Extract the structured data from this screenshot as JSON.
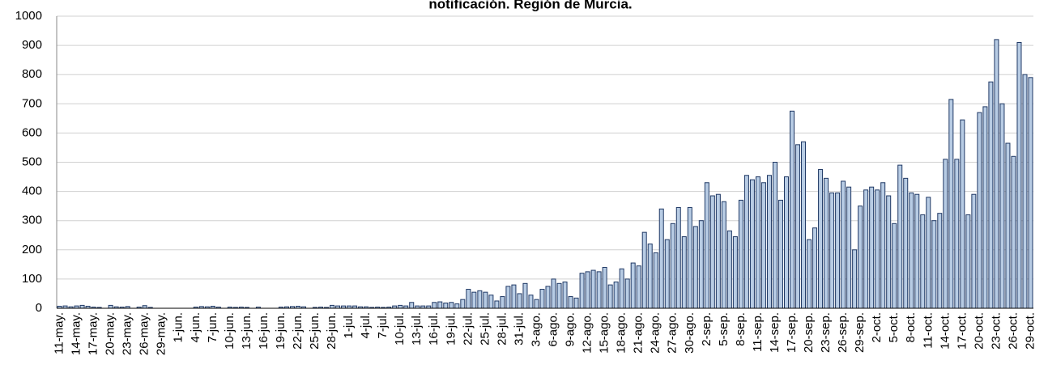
{
  "chart_data": {
    "type": "bar",
    "title": "notificación. Región de Murcia.",
    "categories": [
      "11-may.",
      null,
      null,
      "14-may.",
      null,
      null,
      "17-may.",
      null,
      null,
      "20-may.",
      null,
      null,
      "23-may.",
      null,
      null,
      "26-may.",
      null,
      null,
      "29-may.",
      null,
      null,
      "1-jun.",
      null,
      null,
      "4-jun.",
      null,
      null,
      "7-jun.",
      null,
      null,
      "10-jun.",
      null,
      null,
      "13-jun.",
      null,
      null,
      "16-jun.",
      null,
      null,
      "19-jun.",
      null,
      null,
      "22-jun.",
      null,
      null,
      "25-jun.",
      null,
      null,
      "28-jun.",
      null,
      null,
      "1-jul.",
      null,
      null,
      "4-jul.",
      null,
      null,
      "7-jul.",
      null,
      null,
      "10-jul.",
      null,
      null,
      "13-jul.",
      null,
      null,
      "16-jul.",
      null,
      null,
      "19-jul.",
      null,
      null,
      "22-jul.",
      null,
      null,
      "25-jul.",
      null,
      null,
      "28-jul.",
      null,
      null,
      "31-jul.",
      null,
      null,
      "3-ago.",
      null,
      null,
      "6-ago.",
      null,
      null,
      "9-ago.",
      null,
      null,
      "12-ago.",
      null,
      null,
      "15-ago.",
      null,
      null,
      "18-ago.",
      null,
      null,
      "21-ago.",
      null,
      null,
      "24-ago.",
      null,
      null,
      "27-ago.",
      null,
      null,
      "30-ago.",
      null,
      null,
      "2-sep.",
      null,
      null,
      "5-sep.",
      null,
      null,
      "8-sep.",
      null,
      null,
      "11-sep.",
      null,
      null,
      "14-sep.",
      null,
      null,
      "17-sep.",
      null,
      null,
      "20-sep.",
      null,
      null,
      "23-sep.",
      null,
      null,
      "26-sep.",
      null,
      null,
      "29-sep.",
      null,
      null,
      "2-oct.",
      null,
      null,
      "5-oct.",
      null,
      null,
      "8-oct.",
      null,
      null,
      "11-oct.",
      null,
      null,
      "14-oct.",
      null,
      null,
      "17-oct.",
      null,
      null,
      "20-oct.",
      null,
      null,
      "23-oct.",
      null,
      null,
      "26-oct.",
      null,
      null,
      "29-oct."
    ],
    "values": [
      7,
      8,
      5,
      8,
      10,
      7,
      4,
      3,
      0,
      10,
      5,
      4,
      6,
      0,
      4,
      9,
      3,
      0,
      0,
      0,
      0,
      0,
      0,
      0,
      4,
      6,
      5,
      7,
      4,
      0,
      4,
      3,
      4,
      3,
      0,
      4,
      0,
      0,
      0,
      4,
      5,
      6,
      7,
      5,
      0,
      3,
      4,
      3,
      10,
      8,
      8,
      8,
      8,
      5,
      5,
      3,
      4,
      3,
      4,
      8,
      10,
      8,
      20,
      8,
      8,
      8,
      20,
      22,
      18,
      20,
      15,
      30,
      65,
      55,
      60,
      55,
      45,
      25,
      40,
      75,
      80,
      50,
      85,
      45,
      30,
      65,
      75,
      100,
      85,
      90,
      40,
      35,
      120,
      125,
      130,
      125,
      140,
      80,
      90,
      135,
      100,
      155,
      145,
      260,
      220,
      190,
      340,
      235,
      290,
      345,
      245,
      345,
      280,
      300,
      430,
      385,
      390,
      365,
      265,
      245,
      370,
      455,
      440,
      450,
      430,
      455,
      500,
      370,
      450,
      675,
      560,
      570,
      235,
      275,
      475,
      445,
      395,
      395,
      435,
      415,
      200,
      350,
      405,
      415,
      405,
      430,
      385,
      290,
      490,
      445,
      395,
      390,
      320,
      380,
      300,
      325,
      510,
      715,
      510,
      645,
      320,
      390,
      670,
      690,
      775,
      920,
      700,
      565,
      520,
      910,
      800,
      790
    ],
    "color": "#b8cce4",
    "edge_color": "#1f3864",
    "ylim": [
      0,
      1000
    ],
    "yticks": [
      0,
      100,
      200,
      300,
      400,
      500,
      600,
      700,
      800,
      900,
      1000
    ],
    "grid": true
  }
}
